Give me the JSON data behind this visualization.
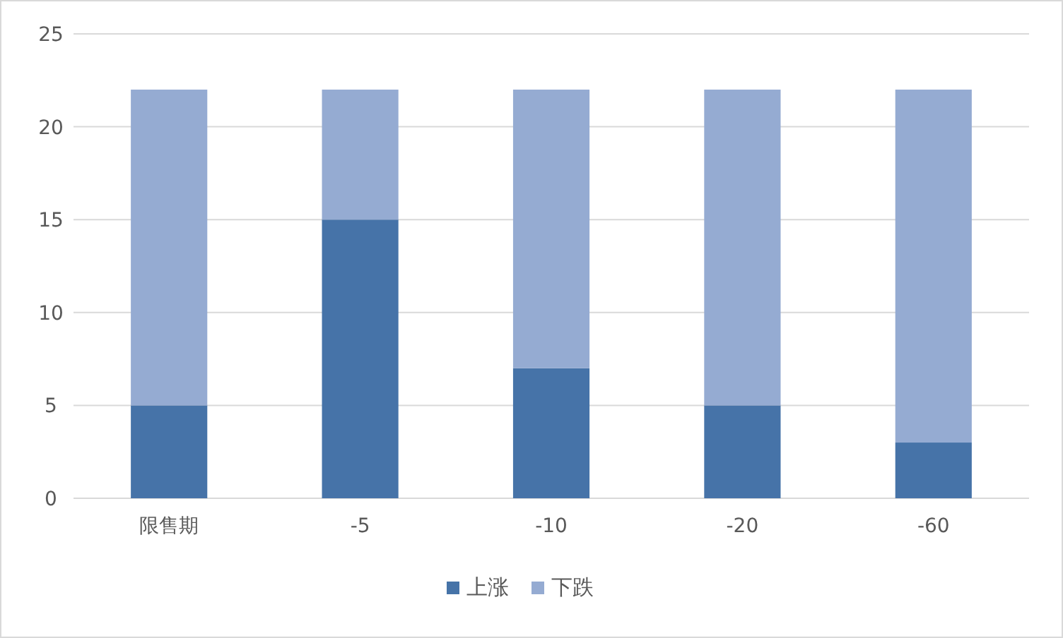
{
  "chart_data": {
    "type": "bar",
    "stacked": true,
    "categories": [
      "限售期",
      "-5",
      "-10",
      "-20",
      "-60"
    ],
    "series": [
      {
        "name": "上涨",
        "color": "#4673a8",
        "values": [
          5,
          15,
          7,
          5,
          3
        ]
      },
      {
        "name": "下跌",
        "color": "#95abd2",
        "values": [
          17,
          7,
          15,
          17,
          19
        ]
      }
    ],
    "ylim": [
      0,
      25
    ],
    "yticks": [
      0,
      5,
      10,
      15,
      20,
      25
    ],
    "grid": "y",
    "legend": "bottom"
  }
}
